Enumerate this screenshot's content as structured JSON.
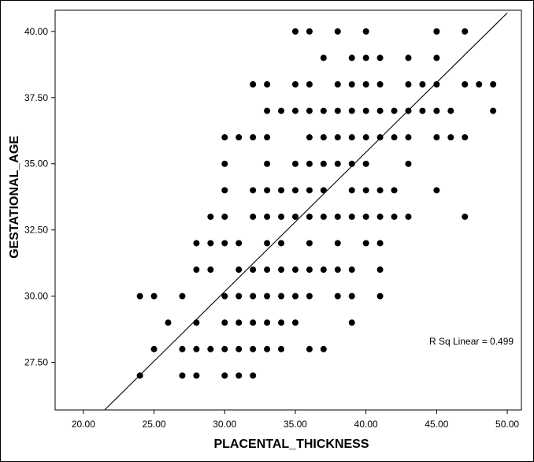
{
  "chart_data": {
    "type": "scatter",
    "title": "",
    "xlabel": "PLACENTAL_THICKNESS",
    "ylabel": "GESTATIONAL_AGE",
    "xlim": [
      18,
      51
    ],
    "ylim": [
      25.7,
      40.8
    ],
    "xticks": [
      "20.00",
      "25.00",
      "30.00",
      "35.00",
      "40.00",
      "45.00",
      "50.00"
    ],
    "yticks": [
      "27.50",
      "30.00",
      "32.50",
      "35.00",
      "37.50",
      "40.00"
    ],
    "grid": false,
    "legend": "none",
    "fit_line": {
      "type": "linear",
      "x": [
        21.5,
        50
      ],
      "y": [
        25.7,
        40.7
      ]
    },
    "annotation": "R Sq Linear = 0.499",
    "marker_color": "#000000",
    "points": [
      [
        35,
        40
      ],
      [
        36,
        40
      ],
      [
        38,
        40
      ],
      [
        40,
        40
      ],
      [
        45,
        40
      ],
      [
        47,
        40
      ],
      [
        37,
        39
      ],
      [
        39,
        39
      ],
      [
        40,
        39
      ],
      [
        41,
        39
      ],
      [
        43,
        39
      ],
      [
        45,
        39
      ],
      [
        32,
        38
      ],
      [
        33,
        38
      ],
      [
        35,
        38
      ],
      [
        36,
        38
      ],
      [
        38,
        38
      ],
      [
        39,
        38
      ],
      [
        40,
        38
      ],
      [
        41,
        38
      ],
      [
        43,
        38
      ],
      [
        44,
        38
      ],
      [
        45,
        38
      ],
      [
        47,
        38
      ],
      [
        48,
        38
      ],
      [
        49,
        38
      ],
      [
        33,
        37
      ],
      [
        34,
        37
      ],
      [
        35,
        37
      ],
      [
        36,
        37
      ],
      [
        37,
        37
      ],
      [
        38,
        37
      ],
      [
        39,
        37
      ],
      [
        40,
        37
      ],
      [
        41,
        37
      ],
      [
        42,
        37
      ],
      [
        43,
        37
      ],
      [
        44,
        37
      ],
      [
        45,
        37
      ],
      [
        46,
        37
      ],
      [
        49,
        37
      ],
      [
        30,
        36
      ],
      [
        31,
        36
      ],
      [
        32,
        36
      ],
      [
        33,
        36
      ],
      [
        36,
        36
      ],
      [
        37,
        36
      ],
      [
        38,
        36
      ],
      [
        39,
        36
      ],
      [
        40,
        36
      ],
      [
        41,
        36
      ],
      [
        42,
        36
      ],
      [
        43,
        36
      ],
      [
        45,
        36
      ],
      [
        46,
        36
      ],
      [
        47,
        36
      ],
      [
        30,
        35
      ],
      [
        33,
        35
      ],
      [
        35,
        35
      ],
      [
        36,
        35
      ],
      [
        37,
        35
      ],
      [
        38,
        35
      ],
      [
        39,
        35
      ],
      [
        40,
        35
      ],
      [
        43,
        35
      ],
      [
        30,
        34
      ],
      [
        32,
        34
      ],
      [
        33,
        34
      ],
      [
        34,
        34
      ],
      [
        35,
        34
      ],
      [
        36,
        34
      ],
      [
        37,
        34
      ],
      [
        39,
        34
      ],
      [
        40,
        34
      ],
      [
        41,
        34
      ],
      [
        42,
        34
      ],
      [
        45,
        34
      ],
      [
        29,
        33
      ],
      [
        30,
        33
      ],
      [
        32,
        33
      ],
      [
        33,
        33
      ],
      [
        34,
        33
      ],
      [
        35,
        33
      ],
      [
        36,
        33
      ],
      [
        37,
        33
      ],
      [
        38,
        33
      ],
      [
        39,
        33
      ],
      [
        40,
        33
      ],
      [
        41,
        33
      ],
      [
        42,
        33
      ],
      [
        43,
        33
      ],
      [
        47,
        33
      ],
      [
        28,
        32
      ],
      [
        29,
        32
      ],
      [
        30,
        32
      ],
      [
        31,
        32
      ],
      [
        33,
        32
      ],
      [
        34,
        32
      ],
      [
        36,
        32
      ],
      [
        38,
        32
      ],
      [
        40,
        32
      ],
      [
        41,
        32
      ],
      [
        28,
        31
      ],
      [
        29,
        31
      ],
      [
        31,
        31
      ],
      [
        32,
        31
      ],
      [
        33,
        31
      ],
      [
        34,
        31
      ],
      [
        35,
        31
      ],
      [
        36,
        31
      ],
      [
        37,
        31
      ],
      [
        38,
        31
      ],
      [
        39,
        31
      ],
      [
        41,
        31
      ],
      [
        24,
        30
      ],
      [
        25,
        30
      ],
      [
        27,
        30
      ],
      [
        30,
        30
      ],
      [
        31,
        30
      ],
      [
        32,
        30
      ],
      [
        33,
        30
      ],
      [
        34,
        30
      ],
      [
        35,
        30
      ],
      [
        36,
        30
      ],
      [
        38,
        30
      ],
      [
        39,
        30
      ],
      [
        41,
        30
      ],
      [
        26,
        29
      ],
      [
        28,
        29
      ],
      [
        30,
        29
      ],
      [
        31,
        29
      ],
      [
        32,
        29
      ],
      [
        33,
        29
      ],
      [
        34,
        29
      ],
      [
        35,
        29
      ],
      [
        39,
        29
      ],
      [
        25,
        28
      ],
      [
        27,
        28
      ],
      [
        28,
        28
      ],
      [
        29,
        28
      ],
      [
        30,
        28
      ],
      [
        31,
        28
      ],
      [
        32,
        28
      ],
      [
        33,
        28
      ],
      [
        34,
        28
      ],
      [
        36,
        28
      ],
      [
        37,
        28
      ],
      [
        24,
        27
      ],
      [
        27,
        27
      ],
      [
        28,
        27
      ],
      [
        30,
        27
      ],
      [
        31,
        27
      ],
      [
        32,
        27
      ]
    ]
  }
}
